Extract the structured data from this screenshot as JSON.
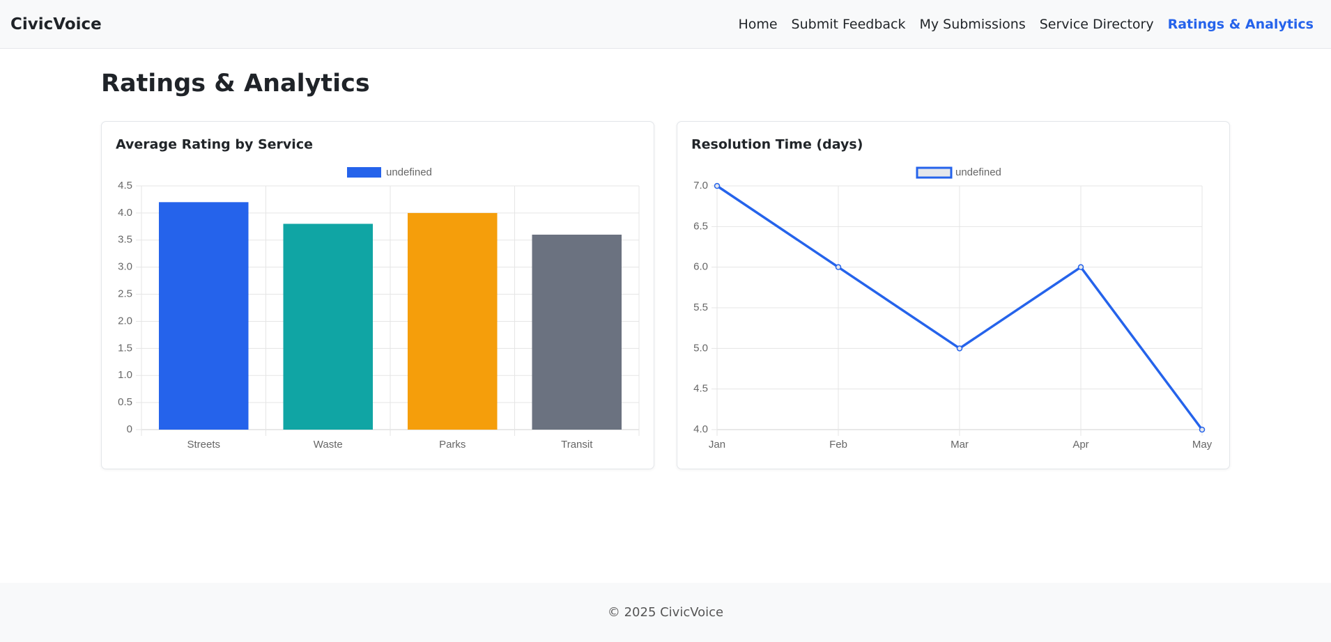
{
  "nav": {
    "brand": "CivicVoice",
    "links": [
      "Home",
      "Submit Feedback",
      "My Submissions",
      "Service Directory",
      "Ratings & Analytics"
    ]
  },
  "page_title": "Ratings & Analytics",
  "chart_data": [
    {
      "type": "bar",
      "title": "Average Rating by Service",
      "categories": [
        "Streets",
        "Waste",
        "Parks",
        "Transit"
      ],
      "series": [
        {
          "name": "undefined",
          "colors": [
            "#2563eb",
            "#10a5a4",
            "#f59e0b",
            "#6b7280"
          ],
          "values": [
            4.2,
            3.8,
            4.0,
            3.6
          ]
        }
      ],
      "ylim": [
        0,
        4.5
      ],
      "yticks": [
        0,
        0.5,
        {
          "value": 1,
          "label": "1.0"
        },
        1.5,
        {
          "value": 2,
          "label": "2.0"
        },
        2.5,
        {
          "value": 3,
          "label": "3.0"
        },
        3.5,
        {
          "value": 4,
          "label": "4.0"
        },
        4.5
      ],
      "grid": true,
      "legend": "top"
    },
    {
      "type": "line",
      "title": "Resolution Time (days)",
      "categories": [
        "Jan",
        "Feb",
        "Mar",
        "Apr",
        "May"
      ],
      "series": [
        {
          "name": "undefined",
          "color": "#2563eb",
          "values": [
            7,
            6,
            5,
            6,
            4
          ]
        }
      ],
      "ylim": [
        4,
        7
      ],
      "yticks": [
        {
          "value": 4,
          "label": "4.0"
        },
        4.5,
        {
          "value": 5,
          "label": "5.0"
        },
        5.5,
        {
          "value": 6,
          "label": "6.0"
        },
        6.5,
        {
          "value": 7,
          "label": "7.0"
        }
      ],
      "grid": true,
      "legend": "top"
    }
  ],
  "footer": "© 2025 CivicVoice"
}
